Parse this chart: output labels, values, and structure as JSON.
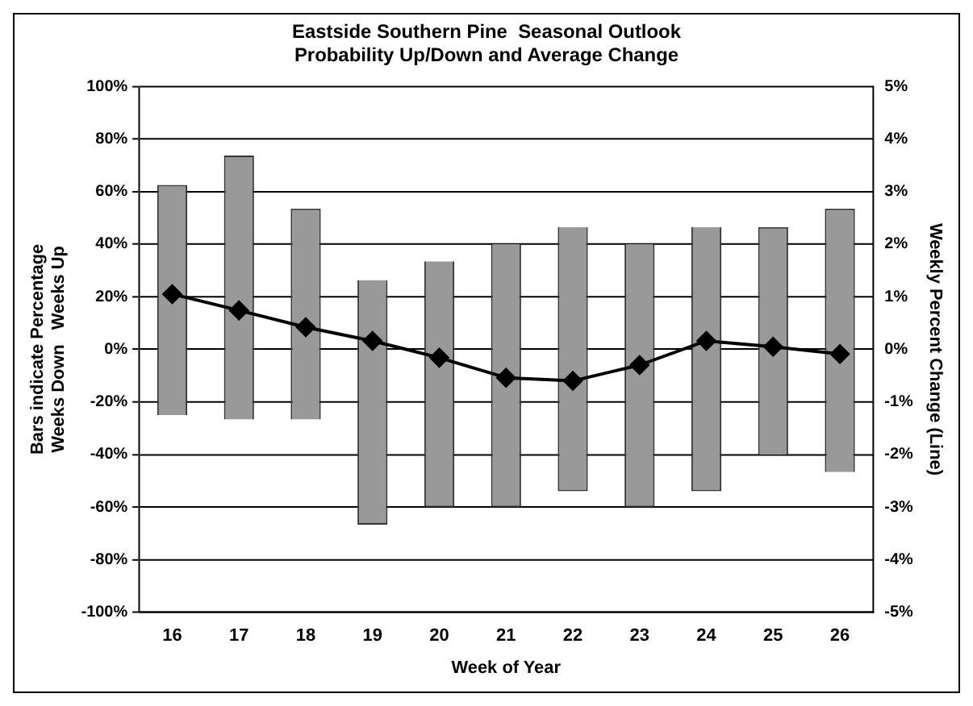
{
  "chart_data": {
    "type": "bar",
    "title": [
      "Eastside Southern Pine  Seasonal Outlook",
      "Probability Up/Down and Average Change"
    ],
    "xlabel": "Week of Year",
    "ylabel": [
      "Bars indicate Percentage",
      "Weeks Down   Weeks Up"
    ],
    "y2label": "Weekly Percent Change (Line)",
    "categories": [
      "16",
      "17",
      "18",
      "19",
      "20",
      "21",
      "22",
      "23",
      "24",
      "25",
      "26"
    ],
    "series": [
      {
        "color": "#999999",
        "base": [
          -25,
          -26.7,
          -26.7,
          -66.7,
          -60,
          -60,
          -54,
          -60,
          -54,
          -40,
          -46.7
        ],
        "values": [
          87.5,
          100.4,
          80.2,
          93,
          93.5,
          100,
          100.5,
          100,
          100.5,
          86.5,
          100.2
        ]
      },
      {
        "type": "line",
        "axis": "y2",
        "color": "#000000",
        "marker": "diamond",
        "line_style": "solid",
        "values": [
          1.05,
          0.74,
          0.42,
          0.16,
          -0.16,
          -0.54,
          -0.6,
          -0.3,
          0.16,
          0.05,
          -0.09
        ]
      }
    ],
    "ylim": [
      -100,
      100
    ],
    "yticks": [
      {
        "value": -100,
        "label": "-100%"
      },
      {
        "value": -80,
        "label": "-80%"
      },
      {
        "value": -60,
        "label": "-60%"
      },
      {
        "value": -40,
        "label": "-40%"
      },
      {
        "value": -20,
        "label": "-20%"
      },
      {
        "value": 0,
        "label": "0%"
      },
      {
        "value": 20,
        "label": "20%"
      },
      {
        "value": 40,
        "label": "40%"
      },
      {
        "value": 60,
        "label": "60%"
      },
      {
        "value": 80,
        "label": "80%"
      },
      {
        "value": 100,
        "label": "100%"
      }
    ],
    "y2lim": [
      -5,
      5
    ],
    "y2ticks": [
      {
        "value": -5,
        "label": "-5%"
      },
      {
        "value": -4,
        "label": "-4%"
      },
      {
        "value": -3,
        "label": "-3%"
      },
      {
        "value": -2,
        "label": "-2%"
      },
      {
        "value": -1,
        "label": "-1%"
      },
      {
        "value": 0,
        "label": "0%"
      },
      {
        "value": 1,
        "label": "1%"
      },
      {
        "value": 2,
        "label": "2%"
      },
      {
        "value": 3,
        "label": "3%"
      },
      {
        "value": 4,
        "label": "4%"
      },
      {
        "value": 5,
        "label": "5%"
      }
    ],
    "grid": "y",
    "legend": false
  }
}
